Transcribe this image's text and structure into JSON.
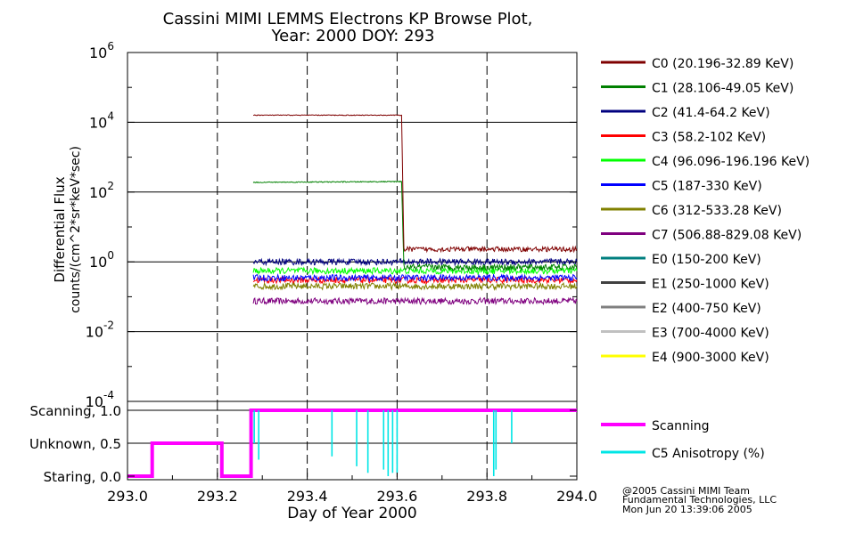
{
  "chart_data": [
    {
      "type": "line",
      "title": "Cassini MIMI LEMMS Electrons KP Browse Plot,",
      "subtitle": "Year: 2000 DOY: 293",
      "ylabel_line1": "Differential Flux",
      "ylabel_line2": "counts/(cm^2*sr*keV*sec)",
      "yscale": "log",
      "ylim": [
        0.0001,
        1000000
      ],
      "xlim": [
        293.0,
        294.0
      ],
      "grid": true,
      "y_ticks": [
        {
          "base": "10",
          "exp": "6",
          "value": 1000000
        },
        {
          "base": "10",
          "exp": "4",
          "value": 10000
        },
        {
          "base": "10",
          "exp": "2",
          "value": 100
        },
        {
          "base": "10",
          "exp": "0",
          "value": 1
        },
        {
          "base": "10",
          "exp": "-2",
          "value": 0.01
        },
        {
          "base": "10",
          "exp": "-4",
          "value": 0.0001
        }
      ],
      "legend_position": "right",
      "series": [
        {
          "name": "C0 (20.196-32.89 KeV)",
          "color": "#7f0000",
          "x": [
            293.28,
            293.61,
            293.615,
            294.0
          ],
          "y": [
            16000,
            16000,
            2.3,
            2.3
          ]
        },
        {
          "name": "C1 (28.106-49.05 KeV)",
          "color": "#008000",
          "x": [
            293.28,
            293.61,
            293.615,
            294.0
          ],
          "y": [
            190,
            200,
            0.7,
            0.7
          ]
        },
        {
          "name": "C2 (41.4-64.2 KeV)",
          "color": "#00007f",
          "x": [
            293.28,
            294.0
          ],
          "y": [
            1.0,
            1.0
          ]
        },
        {
          "name": "C3 (58.2-102 KeV)",
          "color": "#ff0000",
          "x": [
            293.28,
            294.0
          ],
          "y": [
            0.3,
            0.3
          ]
        },
        {
          "name": "C4 (96.096-196.196 KeV)",
          "color": "#00ff00",
          "x": [
            293.28,
            294.0
          ],
          "y": [
            0.55,
            0.55
          ]
        },
        {
          "name": "C5 (187-330 KeV)",
          "color": "#0000ff",
          "x": [
            293.28,
            294.0
          ],
          "y": [
            0.35,
            0.35
          ]
        },
        {
          "name": "C6 (312-533.28 KeV)",
          "color": "#808000",
          "x": [
            293.28,
            294.0
          ],
          "y": [
            0.2,
            0.2
          ]
        },
        {
          "name": "C7 (506.88-829.08 KeV)",
          "color": "#7f007f",
          "x": [
            293.28,
            294.0
          ],
          "y": [
            0.075,
            0.075
          ]
        },
        {
          "name": "E0 (150-200 KeV)",
          "color": "#007f7f",
          "x": [],
          "y": []
        },
        {
          "name": "E1 (250-1000 KeV)",
          "color": "#404040",
          "x": [],
          "y": []
        },
        {
          "name": "E2 (400-750 KeV)",
          "color": "#808080",
          "x": [],
          "y": []
        },
        {
          "name": "E3 (700-4000 KeV)",
          "color": "#c0c0c0",
          "x": [],
          "y": []
        },
        {
          "name": "E4 (900-3000 KeV)",
          "color": "#ffff00",
          "x": [],
          "y": []
        }
      ]
    },
    {
      "type": "line",
      "xlabel": "Day of Year 2000",
      "xlim": [
        293.0,
        294.0
      ],
      "ylim": [
        0.0,
        1.0
      ],
      "grid": true,
      "x_ticks": [
        "293.0",
        "293.2",
        "293.4",
        "293.6",
        "293.8",
        "294.0"
      ],
      "x_tick_values": [
        293.0,
        293.2,
        293.4,
        293.6,
        293.8,
        294.0
      ],
      "y_ticks": [
        {
          "label": "Scanning, 1.0",
          "value": 1.0
        },
        {
          "label": "Unknown, 0.5",
          "value": 0.5
        },
        {
          "label": "Staring, 0.0",
          "value": 0.0
        }
      ],
      "legend_position": "right",
      "series": [
        {
          "name": "Scanning",
          "color": "#ff00ff",
          "x": [
            293.0,
            293.055,
            293.055,
            293.21,
            293.21,
            293.275,
            293.275,
            294.0
          ],
          "y": [
            0.0,
            0.0,
            0.5,
            0.5,
            0.0,
            0.0,
            1.0,
            1.0
          ]
        },
        {
          "name": "C5 Anisotropy (%)",
          "color": "#00e5e5",
          "spikes": [
            {
              "x": 293.282,
              "y": 0.5
            },
            {
              "x": 293.292,
              "y": 0.25
            },
            {
              "x": 293.455,
              "y": 0.3
            },
            {
              "x": 293.51,
              "y": 0.15
            },
            {
              "x": 293.535,
              "y": 0.05
            },
            {
              "x": 293.57,
              "y": 0.1
            },
            {
              "x": 293.58,
              "y": 0.0
            },
            {
              "x": 293.59,
              "y": 0.05
            },
            {
              "x": 293.6,
              "y": 0.05
            },
            {
              "x": 293.815,
              "y": 0.0
            },
            {
              "x": 293.82,
              "y": 0.1
            },
            {
              "x": 293.855,
              "y": 0.5
            }
          ]
        }
      ]
    }
  ],
  "footer": {
    "line1": "@2005 Cassini MIMI Team",
    "line2": "Fundamental Technologies, LLC",
    "line3": "Mon Jun 20 13:39:06 2005"
  }
}
